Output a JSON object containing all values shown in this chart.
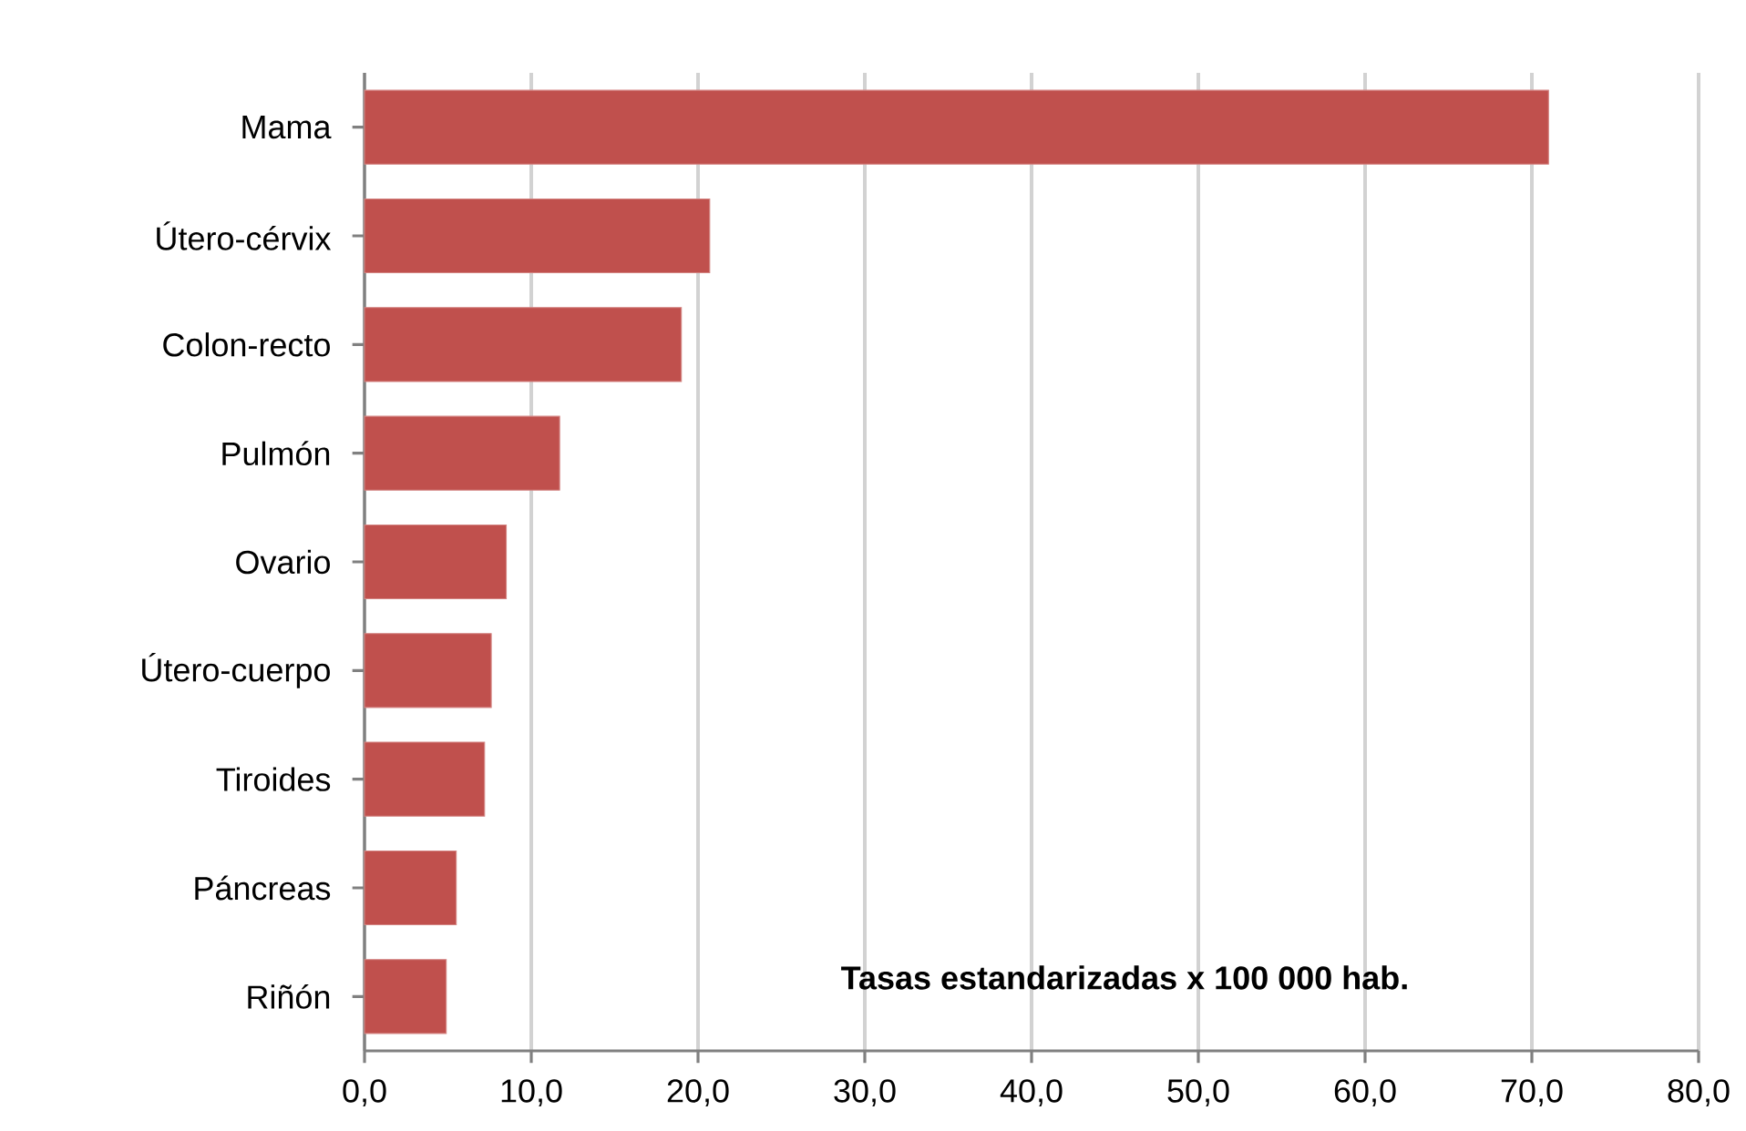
{
  "chart_data": {
    "type": "bar",
    "orientation": "horizontal",
    "categories": [
      "Mama",
      "Útero-cérvix",
      "Colon-recto",
      "Pulmón",
      "Ovario",
      "Útero-cuerpo",
      "Tiroides",
      "Páncreas",
      "Riñón"
    ],
    "values": [
      71.0,
      20.7,
      19.0,
      11.7,
      8.5,
      7.6,
      7.2,
      5.5,
      4.9
    ],
    "color": "#c0504d",
    "xlim": [
      0,
      80
    ],
    "xticks": [
      {
        "value": 0,
        "label": "0,0"
      },
      {
        "value": 10,
        "label": "10,0"
      },
      {
        "value": 20,
        "label": "20,0"
      },
      {
        "value": 30,
        "label": "30,0"
      },
      {
        "value": 40,
        "label": "40,0"
      },
      {
        "value": 50,
        "label": "50,0"
      },
      {
        "value": 60,
        "label": "60,0"
      },
      {
        "value": 70,
        "label": "70,0"
      },
      {
        "value": 80,
        "label": "80,0"
      }
    ],
    "grid": "x",
    "annotations": [
      "Tasas estandarizadas x 100 000 hab."
    ]
  }
}
